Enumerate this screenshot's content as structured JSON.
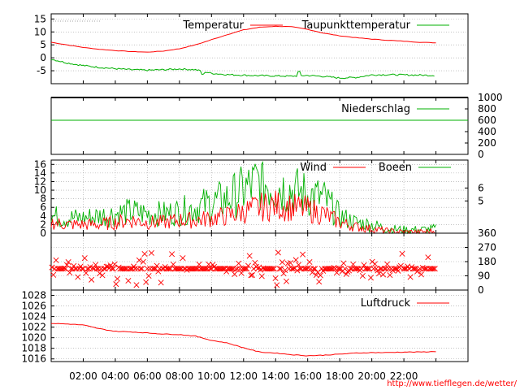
{
  "source_url": "http://www.tiefflegen.de/wetter/",
  "colors": {
    "red": "#ff0000",
    "green": "#00b000",
    "grid": "#a0a0a0",
    "frame": "#000000"
  },
  "time_ticks": [
    "02:00",
    "04:00",
    "06:00",
    "08:00",
    "10:00",
    "12:00",
    "14:00",
    "16:00",
    "18:00",
    "20:00",
    "22:00"
  ],
  "chart_data": [
    {
      "type": "line",
      "id": "temperature",
      "ylim": [
        -10,
        17
      ],
      "yticks": [
        "15",
        "10",
        "5",
        "0",
        "-5"
      ],
      "yticks_values": [
        15,
        10,
        5,
        0,
        -5
      ],
      "legend": [
        "Temperatur",
        "Taupunkttemperatur"
      ],
      "x_hours": [
        0,
        1,
        2,
        3,
        4,
        5,
        6,
        7,
        8,
        9,
        10,
        11,
        12,
        13,
        14,
        15,
        16,
        17,
        18,
        19,
        20,
        21,
        22,
        23,
        24
      ],
      "series": [
        {
          "name": "Temperatur",
          "color": "#ff0000",
          "values": [
            6,
            5,
            4,
            3.3,
            2.8,
            2.4,
            2.2,
            2.6,
            3.5,
            5,
            7,
            9,
            10.8,
            11.8,
            12.2,
            12,
            11,
            9.5,
            8.5,
            7.8,
            7.2,
            6.8,
            6.4,
            6,
            5.8
          ]
        },
        {
          "name": "Taupunkttemperatur",
          "color": "#00b000",
          "values": [
            -0.5,
            -2,
            -3,
            -3.7,
            -4.2,
            -4.6,
            -4.8,
            -4.6,
            -4.3,
            -4.6,
            -6,
            -6.5,
            -6.7,
            -6.9,
            -7,
            -7.1,
            -6.8,
            -7.2,
            -7.8,
            -7.6,
            -6.6,
            -6.5,
            -6.6,
            -6.7,
            -6.8
          ]
        }
      ]
    },
    {
      "type": "line",
      "id": "precipitation",
      "ylim": [
        0,
        1000
      ],
      "yticks": [
        "1000",
        "800",
        "600",
        "400",
        "200",
        "0"
      ],
      "yticks_values": [
        1000,
        800,
        600,
        400,
        200,
        0
      ],
      "legend": [
        "Niederschlag"
      ],
      "series": [
        {
          "name": "Niederschlag",
          "color": "#00b000",
          "values": [
            600,
            600
          ]
        }
      ]
    },
    {
      "type": "line",
      "id": "wind",
      "ylim": [
        0,
        17
      ],
      "yticks": [
        "16",
        "14",
        "12",
        "10",
        "8",
        "6",
        "4",
        "2",
        "0"
      ],
      "yticks_values": [
        16,
        14,
        12,
        10,
        8,
        6,
        4,
        2,
        0
      ],
      "y2ticks": [
        "6",
        "5"
      ],
      "y2ticks_values": [
        10.5,
        7.5
      ],
      "legend": [
        "Wind",
        "Boeen"
      ],
      "x_hours": [
        0,
        1,
        2,
        3,
        4,
        5,
        6,
        7,
        8,
        9,
        10,
        11,
        12,
        13,
        14,
        15,
        16,
        17,
        18,
        19,
        20,
        21,
        22,
        23,
        24
      ],
      "series": [
        {
          "name": "Wind",
          "color": "#ff0000",
          "values": [
            2.5,
            2,
            2,
            2,
            2.5,
            3,
            2.5,
            2.5,
            3,
            3,
            3.5,
            4,
            5,
            6,
            6.5,
            6,
            5.5,
            4.5,
            2.5,
            1.5,
            1,
            0.5,
            0.3,
            0.3,
            0.5
          ]
        },
        {
          "name": "Boeen",
          "color": "#00b000",
          "values": [
            4,
            3.5,
            3.5,
            4,
            4.5,
            5,
            4.5,
            4.5,
            5,
            6,
            7,
            8,
            10,
            12,
            11,
            10,
            9,
            8,
            4,
            2.5,
            2,
            1,
            0.8,
            0.8,
            1
          ]
        }
      ]
    },
    {
      "type": "scatter",
      "id": "wind-direction",
      "ylim": [
        0,
        360
      ],
      "y2ticks": [
        "360",
        "270",
        "180",
        "90",
        "0"
      ],
      "y2ticks_values": [
        360,
        270,
        180,
        90,
        0
      ],
      "marker": "x",
      "color": "#ff0000",
      "centre": 135,
      "spread": 45
    },
    {
      "type": "line",
      "id": "pressure",
      "ylim": [
        1015.5,
        1029
      ],
      "yticks": [
        "1028",
        "1026",
        "1024",
        "1022",
        "1020",
        "1018",
        "1016"
      ],
      "yticks_values": [
        1028,
        1026,
        1024,
        1022,
        1020,
        1018,
        1016
      ],
      "legend": [
        "Luftdruck"
      ],
      "x_hours": [
        0,
        1,
        2,
        3,
        4,
        5,
        6,
        7,
        8,
        9,
        10,
        11,
        12,
        13,
        14,
        15,
        16,
        17,
        18,
        19,
        20,
        21,
        22,
        23,
        24
      ],
      "series": [
        {
          "name": "Luftdruck",
          "color": "#ff0000",
          "values": [
            1022.7,
            1022.6,
            1022.4,
            1021.7,
            1021.2,
            1021.1,
            1020.9,
            1020.7,
            1020.6,
            1020.3,
            1019.5,
            1019,
            1018.1,
            1017.3,
            1017.1,
            1016.8,
            1016.6,
            1016.7,
            1016.9,
            1017.1,
            1017.2,
            1017.2,
            1017.3,
            1017.3,
            1017.4
          ]
        }
      ]
    }
  ]
}
